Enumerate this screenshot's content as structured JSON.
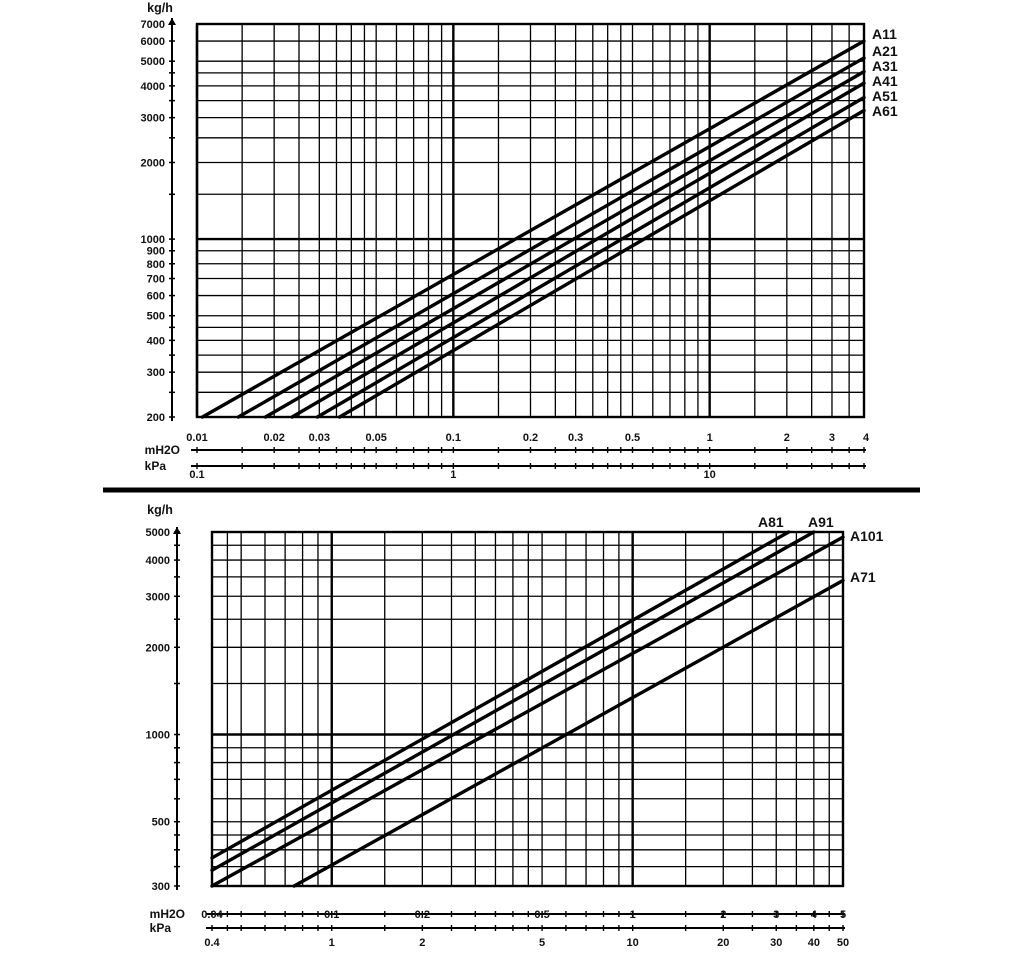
{
  "chart_data": [
    {
      "type": "line",
      "scale": "log-log",
      "grid": true,
      "ylabel": "kg/h",
      "xlabel": "mH2O",
      "xlabel_secondary": "kPa",
      "xlim": [
        0.01,
        4
      ],
      "ylim": [
        200,
        7000
      ],
      "x_ticks": [
        {
          "v": 0.01,
          "t": "0.01"
        },
        {
          "v": 0.02,
          "t": "0.02"
        },
        {
          "v": 0.03,
          "t": "0.03"
        },
        {
          "v": 0.05,
          "t": "0.05"
        },
        {
          "v": 0.1,
          "t": "0.1"
        },
        {
          "v": 0.2,
          "t": "0.2"
        },
        {
          "v": 0.3,
          "t": "0.3"
        },
        {
          "v": 0.5,
          "t": "0.5"
        },
        {
          "v": 1,
          "t": "1"
        },
        {
          "v": 2,
          "t": "2"
        },
        {
          "v": 3,
          "t": "3"
        },
        {
          "v": 4,
          "t": "4"
        }
      ],
      "x2_ticks": [
        {
          "v": 0.01,
          "t": "0.1"
        },
        {
          "v": 0.1,
          "t": "1"
        },
        {
          "v": 1,
          "t": "10"
        }
      ],
      "y_ticks": [
        {
          "v": 200,
          "t": "200"
        },
        {
          "v": 300,
          "t": "300"
        },
        {
          "v": 400,
          "t": "400"
        },
        {
          "v": 500,
          "t": "500"
        },
        {
          "v": 600,
          "t": "600"
        },
        {
          "v": 700,
          "t": "700"
        },
        {
          "v": 800,
          "t": "800"
        },
        {
          "v": 900,
          "t": "900"
        },
        {
          "v": 1000,
          "t": "1000"
        },
        {
          "v": 2000,
          "t": "2000"
        },
        {
          "v": 3000,
          "t": "3000"
        },
        {
          "v": 4000,
          "t": "4000"
        },
        {
          "v": 5000,
          "t": "5000"
        },
        {
          "v": 6000,
          "t": "6000"
        },
        {
          "v": 7000,
          "t": "7000"
        }
      ],
      "series": [
        {
          "name": "A11",
          "x": [
            0.0105,
            4
          ],
          "y": [
            200,
            6000
          ]
        },
        {
          "name": "A21",
          "x": [
            0.0145,
            4
          ],
          "y": [
            200,
            5150
          ]
        },
        {
          "name": "A31",
          "x": [
            0.0185,
            4
          ],
          "y": [
            200,
            4550
          ]
        },
        {
          "name": "A41",
          "x": [
            0.0235,
            4
          ],
          "y": [
            200,
            4100
          ]
        },
        {
          "name": "A51",
          "x": [
            0.0295,
            4
          ],
          "y": [
            200,
            3600
          ]
        },
        {
          "name": "A61",
          "x": [
            0.036,
            4
          ],
          "y": [
            200,
            3200
          ]
        }
      ]
    },
    {
      "type": "line",
      "scale": "log-log",
      "grid": true,
      "ylabel": "kg/h",
      "xlabel": "mH2O",
      "xlabel_secondary": "kPa",
      "xlim": [
        0.04,
        5
      ],
      "ylim": [
        300,
        5000
      ],
      "x_ticks": [
        {
          "v": 0.04,
          "t": "0.04"
        },
        {
          "v": 0.1,
          "t": "0.1"
        },
        {
          "v": 0.2,
          "t": "0.2"
        },
        {
          "v": 0.5,
          "t": "0.5"
        },
        {
          "v": 1,
          "t": "1"
        },
        {
          "v": 2,
          "t": "2"
        },
        {
          "v": 3,
          "t": "3"
        },
        {
          "v": 4,
          "t": "4"
        },
        {
          "v": 5,
          "t": "5"
        }
      ],
      "x2_ticks": [
        {
          "v": 0.04,
          "t": "0.4"
        },
        {
          "v": 0.1,
          "t": "1"
        },
        {
          "v": 0.2,
          "t": "2"
        },
        {
          "v": 0.5,
          "t": "5"
        },
        {
          "v": 1,
          "t": "10"
        },
        {
          "v": 2,
          "t": "20"
        },
        {
          "v": 3,
          "t": "30"
        },
        {
          "v": 4,
          "t": "40"
        },
        {
          "v": 5,
          "t": "50"
        }
      ],
      "y_ticks": [
        {
          "v": 300,
          "t": "300"
        },
        {
          "v": 500,
          "t": "500"
        },
        {
          "v": 1000,
          "t": "1000"
        },
        {
          "v": 2000,
          "t": "2000"
        },
        {
          "v": 3000,
          "t": "3000"
        },
        {
          "v": 4000,
          "t": "4000"
        },
        {
          "v": 5000,
          "t": "5000"
        }
      ],
      "series": [
        {
          "name": "A81",
          "x": [
            0.04,
            3.3
          ],
          "y": [
            375,
            5000
          ]
        },
        {
          "name": "A91",
          "x": [
            0.04,
            4.0
          ],
          "y": [
            340,
            5000
          ]
        },
        {
          "name": "A101",
          "x": [
            0.04,
            5.0
          ],
          "y": [
            300,
            4800
          ]
        },
        {
          "name": "A71",
          "x": [
            0.075,
            5.0
          ],
          "y": [
            300,
            3400
          ]
        }
      ]
    }
  ]
}
